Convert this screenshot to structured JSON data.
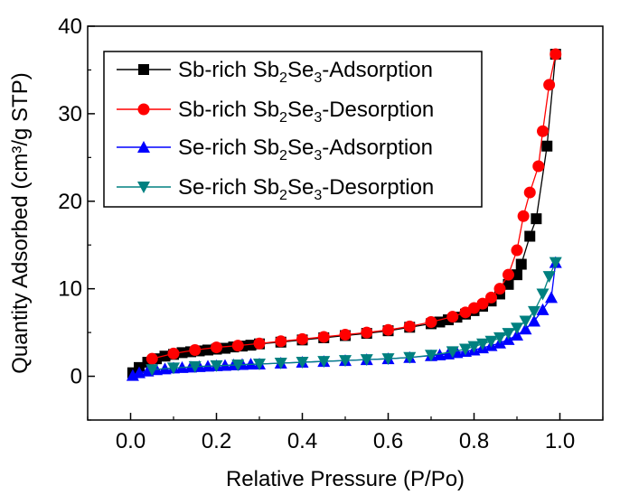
{
  "chart_data": {
    "type": "line",
    "title": "",
    "xlabel": "Relative Pressure (P/Po)",
    "ylabel": "Quantity Adsorbed (cm³/g STP)",
    "xlim": [
      -0.1,
      1.1
    ],
    "ylim": [
      -5,
      40
    ],
    "x_ticks": [
      "0.0",
      "0.2",
      "0.4",
      "0.6",
      "0.8",
      "1.0"
    ],
    "y_ticks": [
      "0",
      "10",
      "20",
      "30",
      "40"
    ],
    "grid": false,
    "legend_position": "top-left",
    "series": [
      {
        "name": "Sb-rich Sb2Se3-Adsorption",
        "legend_main": "Sb-rich Sb",
        "legend_sub1": "2",
        "legend_mid": "Se",
        "legend_sub2": "3",
        "legend_end": "-Adsorption",
        "color": "#000000",
        "marker": "square",
        "points": [
          [
            0.005,
            0.4
          ],
          [
            0.02,
            1.0
          ],
          [
            0.04,
            1.6
          ],
          [
            0.06,
            2.0
          ],
          [
            0.08,
            2.3
          ],
          [
            0.1,
            2.5
          ],
          [
            0.12,
            2.7
          ],
          [
            0.14,
            2.8
          ],
          [
            0.16,
            2.9
          ],
          [
            0.18,
            3.0
          ],
          [
            0.2,
            3.1
          ],
          [
            0.22,
            3.2
          ],
          [
            0.24,
            3.35
          ],
          [
            0.26,
            3.45
          ],
          [
            0.28,
            3.55
          ],
          [
            0.3,
            3.7
          ],
          [
            0.35,
            3.9
          ],
          [
            0.4,
            4.15
          ],
          [
            0.45,
            4.4
          ],
          [
            0.5,
            4.65
          ],
          [
            0.55,
            4.9
          ],
          [
            0.6,
            5.2
          ],
          [
            0.65,
            5.6
          ],
          [
            0.7,
            6.0
          ],
          [
            0.72,
            6.2
          ],
          [
            0.74,
            6.45
          ],
          [
            0.76,
            6.75
          ],
          [
            0.78,
            7.1
          ],
          [
            0.8,
            7.5
          ],
          [
            0.82,
            8.0
          ],
          [
            0.84,
            8.6
          ],
          [
            0.86,
            9.4
          ],
          [
            0.88,
            10.5
          ],
          [
            0.9,
            11.6
          ],
          [
            0.91,
            12.8
          ],
          [
            0.93,
            16.0
          ],
          [
            0.945,
            18.0
          ],
          [
            0.97,
            26.3
          ],
          [
            0.99,
            36.8
          ]
        ]
      },
      {
        "name": "Sb-rich Sb2Se3-Desorption",
        "legend_main": "Sb-rich Sb",
        "legend_sub1": "2",
        "legend_mid": "Se",
        "legend_sub2": "3",
        "legend_end": "-Desorption",
        "color": "#ff0000",
        "marker": "circle",
        "points": [
          [
            0.99,
            36.8
          ],
          [
            0.975,
            33.3
          ],
          [
            0.96,
            28.0
          ],
          [
            0.95,
            24.0
          ],
          [
            0.93,
            21.0
          ],
          [
            0.915,
            18.3
          ],
          [
            0.9,
            14.4
          ],
          [
            0.88,
            11.6
          ],
          [
            0.86,
            10.0
          ],
          [
            0.84,
            9.0
          ],
          [
            0.82,
            8.3
          ],
          [
            0.8,
            7.8
          ],
          [
            0.78,
            7.3
          ],
          [
            0.75,
            6.8
          ],
          [
            0.7,
            6.2
          ],
          [
            0.65,
            5.7
          ],
          [
            0.6,
            5.3
          ],
          [
            0.55,
            5.0
          ],
          [
            0.5,
            4.75
          ],
          [
            0.45,
            4.5
          ],
          [
            0.4,
            4.25
          ],
          [
            0.35,
            4.0
          ],
          [
            0.3,
            3.75
          ],
          [
            0.25,
            3.5
          ],
          [
            0.2,
            3.3
          ],
          [
            0.15,
            3.0
          ],
          [
            0.1,
            2.6
          ],
          [
            0.05,
            2.0
          ]
        ]
      },
      {
        "name": "Se-rich Sb2Se3-Adsorption",
        "legend_main": "Se-rich Sb",
        "legend_sub1": "2",
        "legend_mid": "Se",
        "legend_sub2": "3",
        "legend_end": "-Adsorption",
        "color": "#0000ff",
        "marker": "triangle-up",
        "points": [
          [
            0.005,
            0.1
          ],
          [
            0.02,
            0.4
          ],
          [
            0.04,
            0.6
          ],
          [
            0.06,
            0.75
          ],
          [
            0.08,
            0.85
          ],
          [
            0.1,
            0.95
          ],
          [
            0.12,
            1.0
          ],
          [
            0.14,
            1.05
          ],
          [
            0.16,
            1.1
          ],
          [
            0.18,
            1.15
          ],
          [
            0.2,
            1.2
          ],
          [
            0.22,
            1.25
          ],
          [
            0.24,
            1.3
          ],
          [
            0.26,
            1.35
          ],
          [
            0.28,
            1.38
          ],
          [
            0.3,
            1.4
          ],
          [
            0.35,
            1.5
          ],
          [
            0.4,
            1.6
          ],
          [
            0.45,
            1.7
          ],
          [
            0.5,
            1.8
          ],
          [
            0.55,
            1.9
          ],
          [
            0.6,
            2.0
          ],
          [
            0.65,
            2.15
          ],
          [
            0.7,
            2.35
          ],
          [
            0.72,
            2.45
          ],
          [
            0.74,
            2.55
          ],
          [
            0.76,
            2.7
          ],
          [
            0.78,
            2.85
          ],
          [
            0.8,
            3.0
          ],
          [
            0.82,
            3.25
          ],
          [
            0.84,
            3.5
          ],
          [
            0.86,
            3.8
          ],
          [
            0.88,
            4.2
          ],
          [
            0.9,
            4.7
          ],
          [
            0.92,
            5.4
          ],
          [
            0.94,
            6.3
          ],
          [
            0.96,
            7.6
          ],
          [
            0.98,
            9.0
          ],
          [
            0.99,
            13.0
          ]
        ]
      },
      {
        "name": "Se-rich Sb2Se3-Desorption",
        "legend_main": "Se-rich Sb",
        "legend_sub1": "2",
        "legend_mid": "Se",
        "legend_sub2": "3",
        "legend_end": "-Desorption",
        "color": "#008080",
        "marker": "triangle-down",
        "points": [
          [
            0.99,
            13.0
          ],
          [
            0.975,
            11.4
          ],
          [
            0.96,
            9.4
          ],
          [
            0.94,
            7.4
          ],
          [
            0.92,
            6.3
          ],
          [
            0.9,
            5.5
          ],
          [
            0.88,
            4.9
          ],
          [
            0.86,
            4.4
          ],
          [
            0.84,
            4.0
          ],
          [
            0.82,
            3.7
          ],
          [
            0.8,
            3.4
          ],
          [
            0.78,
            3.1
          ],
          [
            0.75,
            2.8
          ],
          [
            0.7,
            2.4
          ],
          [
            0.65,
            2.15
          ],
          [
            0.6,
            2.0
          ],
          [
            0.55,
            1.9
          ],
          [
            0.5,
            1.8
          ],
          [
            0.45,
            1.7
          ],
          [
            0.4,
            1.6
          ],
          [
            0.35,
            1.5
          ],
          [
            0.3,
            1.4
          ],
          [
            0.25,
            1.3
          ],
          [
            0.2,
            1.2
          ],
          [
            0.15,
            1.1
          ],
          [
            0.1,
            0.95
          ],
          [
            0.05,
            0.75
          ]
        ]
      }
    ]
  }
}
